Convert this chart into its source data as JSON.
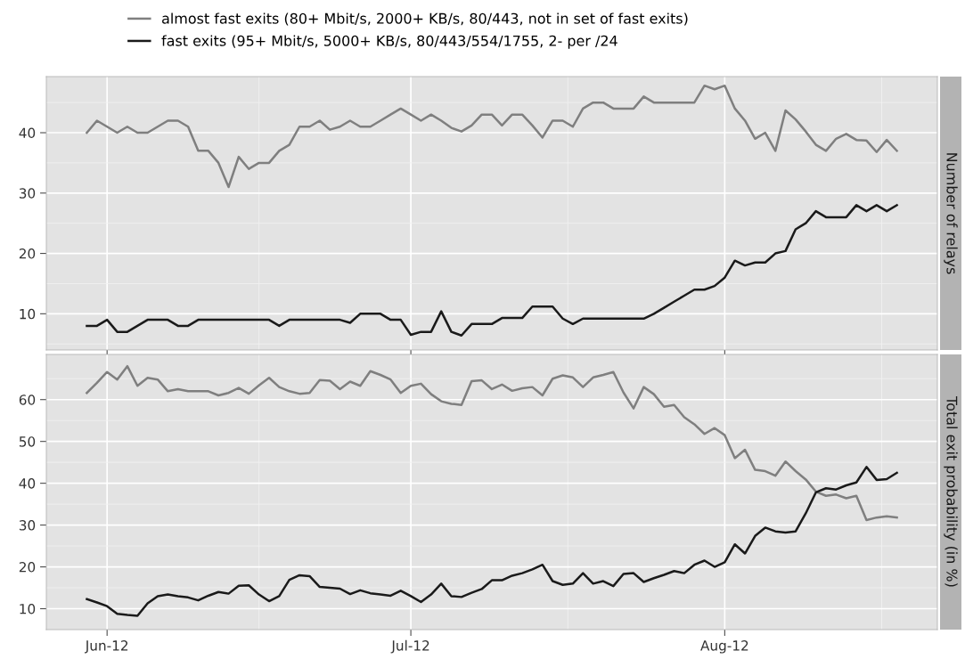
{
  "chart_data": [
    {
      "type": "line",
      "ylabel": "Number of relays",
      "legend": "top",
      "grid": true,
      "tick_labels": "y",
      "x": [
        "2012-05-30",
        "2012-05-31",
        "2012-06-01",
        "2012-06-02",
        "2012-06-03",
        "2012-06-04",
        "2012-06-05",
        "2012-06-06",
        "2012-06-07",
        "2012-06-08",
        "2012-06-09",
        "2012-06-10",
        "2012-06-11",
        "2012-06-12",
        "2012-06-13",
        "2012-06-14",
        "2012-06-15",
        "2012-06-16",
        "2012-06-17",
        "2012-06-18",
        "2012-06-19",
        "2012-06-20",
        "2012-06-21",
        "2012-06-22",
        "2012-06-23",
        "2012-06-24",
        "2012-06-25",
        "2012-06-26",
        "2012-06-27",
        "2012-06-28",
        "2012-06-29",
        "2012-06-30",
        "2012-07-01",
        "2012-07-02",
        "2012-07-03",
        "2012-07-04",
        "2012-07-05",
        "2012-07-06",
        "2012-07-07",
        "2012-07-08",
        "2012-07-09",
        "2012-07-10",
        "2012-07-11",
        "2012-07-12",
        "2012-07-13",
        "2012-07-14",
        "2012-07-15",
        "2012-07-16",
        "2012-07-17",
        "2012-07-18",
        "2012-07-19",
        "2012-07-20",
        "2012-07-21",
        "2012-07-22",
        "2012-07-23",
        "2012-07-24",
        "2012-07-25",
        "2012-07-26",
        "2012-07-27",
        "2012-07-28",
        "2012-07-29",
        "2012-07-30",
        "2012-07-31",
        "2012-08-01",
        "2012-08-02",
        "2012-08-03",
        "2012-08-04",
        "2012-08-05",
        "2012-08-06",
        "2012-08-07",
        "2012-08-08",
        "2012-08-09",
        "2012-08-10",
        "2012-08-11",
        "2012-08-12",
        "2012-08-13",
        "2012-08-14",
        "2012-08-15",
        "2012-08-16",
        "2012-08-17",
        "2012-08-18"
      ],
      "xlim": [
        "2012-05-26",
        "2012-08-22"
      ],
      "xticks": [
        {
          "value": "2012-06-01",
          "label": null
        },
        {
          "value": "2012-07-01",
          "label": null
        },
        {
          "value": "2012-08-01",
          "label": null
        }
      ],
      "ylim": [
        4,
        49.3
      ],
      "yticks": [
        10,
        20,
        30,
        40
      ],
      "series": [
        {
          "name": "almost fast exits (80+ Mbit/s, 2000+ KB/s, 80/443, not in set of fast exits)",
          "color": "#7f7f7f",
          "values": [
            40,
            42,
            41,
            40,
            41,
            40,
            40,
            41,
            42,
            42,
            41,
            37,
            37,
            35,
            31,
            36,
            34,
            35,
            35,
            37,
            38,
            41,
            41,
            42,
            40.5,
            41,
            42,
            41,
            41,
            42,
            43,
            44,
            43,
            42,
            43,
            42,
            40.8,
            40.2,
            41.2,
            43,
            43,
            41.2,
            43,
            43,
            41.2,
            39.2,
            42,
            42,
            41,
            44,
            45,
            45,
            44,
            44,
            44,
            46,
            45,
            45,
            45,
            45,
            45,
            47.8,
            47.2,
            47.8,
            44,
            42,
            39,
            40,
            37,
            43.7,
            42.2,
            40.2,
            38,
            37,
            39,
            39.8,
            38.8,
            38.7,
            36.8,
            38.8,
            37
          ]
        },
        {
          "name": "fast exits (95+ Mbit/s, 5000+ KB/s, 80/443/554/1755, 2- per /24",
          "color": "#1a1a1a",
          "values": [
            8,
            8,
            9,
            7,
            7,
            8,
            9,
            9,
            9,
            8,
            8,
            9,
            9,
            9,
            9,
            9,
            9,
            9,
            9,
            8,
            9,
            9,
            9,
            9,
            9,
            9,
            8.5,
            10,
            10,
            10,
            9,
            9,
            6.5,
            7,
            7,
            10.4,
            7,
            6.4,
            8.3,
            8.3,
            8.3,
            9.3,
            9.3,
            9.3,
            11.2,
            11.2,
            11.2,
            9.2,
            8.3,
            9.2,
            9.2,
            9.2,
            9.2,
            9.2,
            9.2,
            9.2,
            10,
            11,
            12,
            13,
            14,
            14,
            14.6,
            16,
            18.8,
            18,
            18.5,
            18.5,
            20,
            20.4,
            24,
            25,
            27,
            26,
            26,
            26,
            28,
            27,
            28,
            27,
            28
          ]
        }
      ]
    },
    {
      "type": "line",
      "ylabel": "Total exit probability (in %)",
      "grid": true,
      "x": [
        "2012-05-30",
        "2012-05-31",
        "2012-06-01",
        "2012-06-02",
        "2012-06-03",
        "2012-06-04",
        "2012-06-05",
        "2012-06-06",
        "2012-06-07",
        "2012-06-08",
        "2012-06-09",
        "2012-06-10",
        "2012-06-11",
        "2012-06-12",
        "2012-06-13",
        "2012-06-14",
        "2012-06-15",
        "2012-06-16",
        "2012-06-17",
        "2012-06-18",
        "2012-06-19",
        "2012-06-20",
        "2012-06-21",
        "2012-06-22",
        "2012-06-23",
        "2012-06-24",
        "2012-06-25",
        "2012-06-26",
        "2012-06-27",
        "2012-06-28",
        "2012-06-29",
        "2012-06-30",
        "2012-07-01",
        "2012-07-02",
        "2012-07-03",
        "2012-07-04",
        "2012-07-05",
        "2012-07-06",
        "2012-07-07",
        "2012-07-08",
        "2012-07-09",
        "2012-07-10",
        "2012-07-11",
        "2012-07-12",
        "2012-07-13",
        "2012-07-14",
        "2012-07-15",
        "2012-07-16",
        "2012-07-17",
        "2012-07-18",
        "2012-07-19",
        "2012-07-20",
        "2012-07-21",
        "2012-07-22",
        "2012-07-23",
        "2012-07-24",
        "2012-07-25",
        "2012-07-26",
        "2012-07-27",
        "2012-07-28",
        "2012-07-29",
        "2012-07-30",
        "2012-07-31",
        "2012-08-01",
        "2012-08-02",
        "2012-08-03",
        "2012-08-04",
        "2012-08-05",
        "2012-08-06",
        "2012-08-07",
        "2012-08-08",
        "2012-08-09",
        "2012-08-10",
        "2012-08-11",
        "2012-08-12",
        "2012-08-13",
        "2012-08-14",
        "2012-08-15",
        "2012-08-16",
        "2012-08-17",
        "2012-08-18"
      ],
      "xlim": [
        "2012-05-26",
        "2012-08-22"
      ],
      "xticks": [
        {
          "value": "2012-06-01",
          "label": "Jun-12"
        },
        {
          "value": "2012-07-01",
          "label": "Jul-12"
        },
        {
          "value": "2012-08-01",
          "label": "Aug-12"
        }
      ],
      "ylim": [
        5,
        70.8
      ],
      "yticks": [
        10,
        20,
        30,
        40,
        50,
        60
      ],
      "series": [
        {
          "color": "#7f7f7f",
          "values": [
            61.6,
            64,
            66.6,
            64.8,
            68,
            63.3,
            65.2,
            64.8,
            62,
            62.5,
            62,
            62,
            62,
            61,
            61.6,
            62.8,
            61.4,
            63.4,
            65.2,
            63,
            62,
            61.4,
            61.6,
            64.7,
            64.5,
            62.5,
            64.3,
            63.3,
            66.8,
            65.9,
            64.8,
            61.6,
            63.3,
            63.8,
            61.3,
            59.6,
            59,
            58.7,
            64.4,
            64.6,
            62.5,
            63.6,
            62.1,
            62.7,
            63,
            61,
            65,
            65.8,
            65.3,
            63,
            65.3,
            65.9,
            66.6,
            61.7,
            57.9,
            63,
            61.3,
            58.3,
            58.7,
            55.8,
            54.1,
            51.8,
            53.2,
            51.5,
            46,
            48,
            43.2,
            42.9,
            41.8,
            45.2,
            42.9,
            40.9,
            38,
            37,
            37.3,
            36.4,
            37,
            31.2,
            31.8,
            32.1,
            31.8
          ]
        },
        {
          "color": "#1a1a1a",
          "values": [
            12.3,
            11.5,
            10.6,
            8.8,
            8.5,
            8.3,
            11.3,
            13,
            13.4,
            13,
            12.7,
            12,
            13.1,
            14,
            13.6,
            15.5,
            15.6,
            13.4,
            11.8,
            13,
            16.9,
            18,
            17.8,
            15.2,
            15,
            14.8,
            13.5,
            14.4,
            13.7,
            13.4,
            13.1,
            14.3,
            13,
            11.6,
            13.4,
            16,
            13,
            12.8,
            13.8,
            14.7,
            16.8,
            16.8,
            17.9,
            18.5,
            19.4,
            20.5,
            16.6,
            15.7,
            16,
            18.5,
            16,
            16.6,
            15.4,
            18.3,
            18.5,
            16.4,
            17.3,
            18.1,
            19,
            18.5,
            20.5,
            21.5,
            20,
            21.1,
            25.4,
            23.2,
            27.4,
            29.4,
            28.5,
            28.2,
            28.5,
            32.8,
            37.8,
            38.8,
            38.5,
            39.5,
            40.2,
            43.9,
            40.8,
            41,
            42.5
          ]
        }
      ]
    }
  ]
}
